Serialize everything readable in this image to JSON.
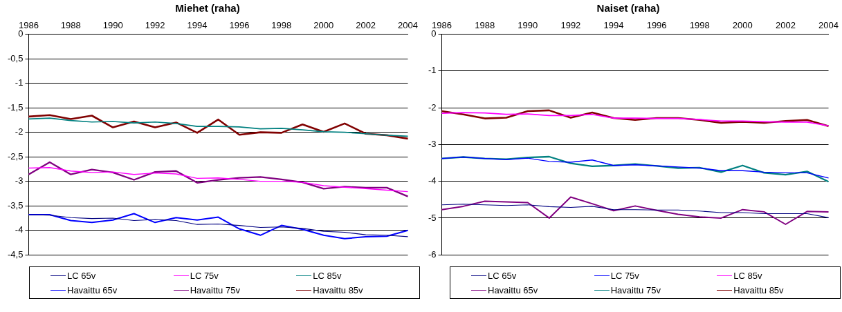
{
  "chart_data": [
    {
      "type": "line",
      "title": "Miehet (raha)",
      "categories": [
        "1986",
        null,
        "1988",
        null,
        "1990",
        null,
        "1992",
        null,
        "1994",
        null,
        "1996",
        null,
        "1998",
        null,
        "2000",
        null,
        "2002",
        null,
        "2004"
      ],
      "ylim": [
        -4.5,
        0
      ],
      "yticks": [
        0,
        {
          "value": -0.5,
          "label": "-0,5"
        },
        -1,
        {
          "value": -1.5,
          "label": "-1,5"
        },
        -2,
        {
          "value": -2.5,
          "label": "-2,5"
        },
        -3,
        {
          "value": -3.5,
          "label": "-3,5"
        },
        -4,
        {
          "value": -4.5,
          "label": "-4,5"
        }
      ],
      "grid": "y",
      "legend": "bottom",
      "marker": "none",
      "line_style": "solid",
      "series": [
        {
          "name": "LC 65v",
          "color": "#000080",
          "values": [
            -3.68,
            -3.69,
            -3.74,
            -3.76,
            -3.75,
            -3.8,
            -3.78,
            -3.8,
            -3.88,
            -3.87,
            -3.9,
            -3.94,
            -3.93,
            -3.96,
            -4.02,
            -4.04,
            -4.09,
            -4.1,
            -4.13
          ]
        },
        {
          "name": "LC 75v",
          "color": "#ff00ff",
          "values": [
            -2.73,
            -2.72,
            -2.79,
            -2.82,
            -2.81,
            -2.86,
            -2.83,
            -2.85,
            -2.94,
            -2.93,
            -2.96,
            -3.0,
            -3.0,
            -3.02,
            -3.09,
            -3.12,
            -3.15,
            -3.18,
            -3.21
          ]
        },
        {
          "name": "LC 85v",
          "color": "#008080",
          "values": [
            -1.73,
            -1.71,
            -1.76,
            -1.79,
            -1.78,
            -1.81,
            -1.79,
            -1.82,
            -1.88,
            -1.88,
            -1.89,
            -1.93,
            -1.92,
            -1.95,
            -1.99,
            -2.0,
            -2.03,
            -2.06,
            -2.08
          ]
        },
        {
          "name": "Havaittu 65v",
          "color": "#0000ff",
          "values": [
            -3.68,
            -3.68,
            -3.8,
            -3.84,
            -3.79,
            -3.66,
            -3.84,
            -3.74,
            -3.79,
            -3.73,
            -3.97,
            -4.1,
            -3.9,
            -3.98,
            -4.1,
            -4.17,
            -4.13,
            -4.12,
            -4.0
          ]
        },
        {
          "name": "Havaittu 75v",
          "color": "#800080",
          "values": [
            -2.86,
            -2.61,
            -2.86,
            -2.76,
            -2.82,
            -2.97,
            -2.81,
            -2.79,
            -3.03,
            -2.97,
            -2.93,
            -2.91,
            -2.96,
            -3.02,
            -3.15,
            -3.11,
            -3.13,
            -3.13,
            -3.31
          ]
        },
        {
          "name": "Havaittu 85v",
          "color": "#800000",
          "values": [
            -1.68,
            -1.65,
            -1.73,
            -1.66,
            -1.9,
            -1.78,
            -1.9,
            -1.8,
            -2.01,
            -1.74,
            -2.05,
            -2.0,
            -2.01,
            -1.84,
            -1.99,
            -1.82,
            -2.03,
            -2.06,
            -2.13
          ]
        }
      ]
    },
    {
      "type": "line",
      "title": "Naiset (raha)",
      "categories": [
        "1986",
        null,
        "1988",
        null,
        "1990",
        null,
        "1992",
        null,
        "1994",
        null,
        "1996",
        null,
        "1998",
        null,
        "2000",
        null,
        "2002",
        null,
        "2004"
      ],
      "ylim": [
        -6,
        0
      ],
      "yticks": [
        0,
        -1,
        -2,
        -3,
        -4,
        -5,
        -6
      ],
      "grid": "y",
      "legend": "bottom",
      "marker": "none",
      "line_style": "solid",
      "series": [
        {
          "name": "LC 65v",
          "color": "#000080",
          "values": [
            -4.64,
            -4.62,
            -4.64,
            -4.66,
            -4.64,
            -4.69,
            -4.71,
            -4.68,
            -4.77,
            -4.77,
            -4.78,
            -4.78,
            -4.81,
            -4.85,
            -4.85,
            -4.88,
            -4.88,
            -4.88,
            -4.99
          ]
        },
        {
          "name": "LC 75v",
          "color": "#0000ff",
          "values": [
            -3.38,
            -3.34,
            -3.38,
            -3.41,
            -3.37,
            -3.46,
            -3.48,
            -3.42,
            -3.57,
            -3.55,
            -3.58,
            -3.61,
            -3.64,
            -3.71,
            -3.71,
            -3.75,
            -3.77,
            -3.77,
            -3.91
          ]
        },
        {
          "name": "LC 85v",
          "color": "#ff00ff",
          "values": [
            -2.15,
            -2.13,
            -2.14,
            -2.18,
            -2.17,
            -2.21,
            -2.21,
            -2.18,
            -2.28,
            -2.28,
            -2.29,
            -2.29,
            -2.32,
            -2.36,
            -2.36,
            -2.38,
            -2.39,
            -2.39,
            -2.49
          ]
        },
        {
          "name": "Havaittu 65v",
          "color": "#800080",
          "values": [
            -4.77,
            -4.68,
            -4.54,
            -4.56,
            -4.58,
            -5.0,
            -4.43,
            -4.61,
            -4.8,
            -4.67,
            -4.79,
            -4.9,
            -4.97,
            -5.0,
            -4.77,
            -4.83,
            -5.17,
            -4.82,
            -4.83
          ]
        },
        {
          "name": "Havaittu 75v",
          "color": "#008080",
          "values": [
            -3.38,
            -3.34,
            -3.38,
            -3.4,
            -3.35,
            -3.33,
            -3.51,
            -3.59,
            -3.57,
            -3.53,
            -3.58,
            -3.64,
            -3.63,
            -3.75,
            -3.57,
            -3.77,
            -3.82,
            -3.73,
            -4.01
          ]
        },
        {
          "name": "Havaittu 85v",
          "color": "#800000",
          "values": [
            -2.09,
            -2.18,
            -2.29,
            -2.27,
            -2.09,
            -2.07,
            -2.27,
            -2.13,
            -2.28,
            -2.33,
            -2.28,
            -2.28,
            -2.33,
            -2.41,
            -2.38,
            -2.41,
            -2.36,
            -2.33,
            -2.5
          ]
        }
      ]
    }
  ]
}
